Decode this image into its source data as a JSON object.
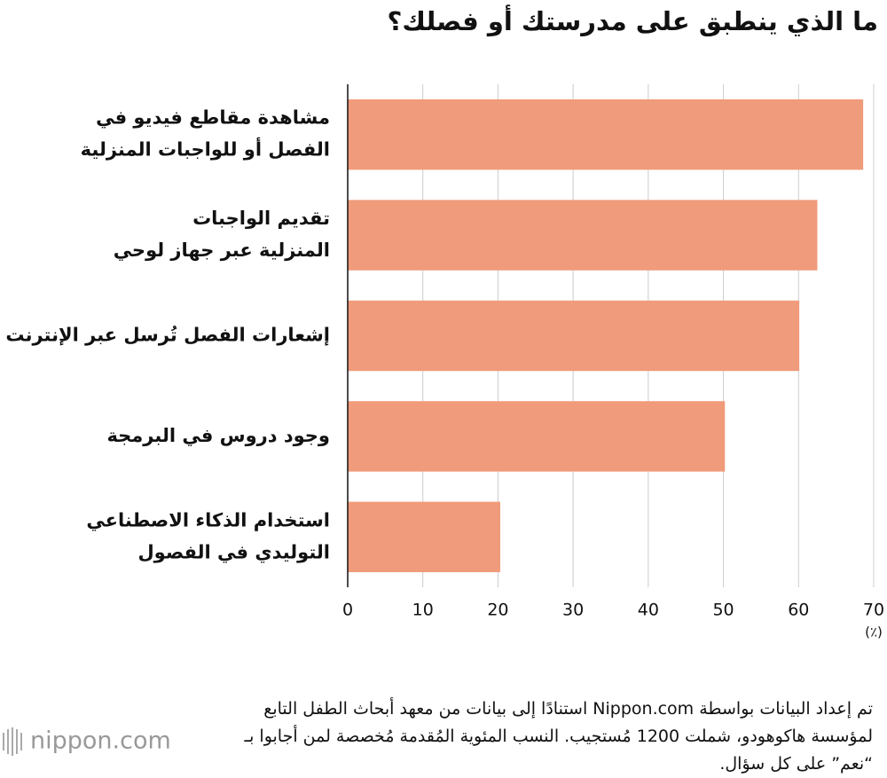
{
  "chart_data": {
    "type": "bar",
    "orientation": "horizontal",
    "title": "ما الذي ينطبق على مدرستك أو فصلك؟",
    "categories": [
      [
        "مشاهدة مقاطع فيديو في",
        "الفصل أو للواجبات المنزلية"
      ],
      [
        "تقديم الواجبات",
        "المنزلية عبر جهاز لوحي"
      ],
      [
        "إشعارات الفصل تُرسل عبر الإنترنت"
      ],
      [
        "وجود دروس في البرمجة"
      ],
      [
        "استخدام الذكاء الاصطناعي",
        "التوليدي في الفصول"
      ]
    ],
    "values": [
      68.6,
      62.5,
      60.1,
      50.2,
      20.3
    ],
    "color": "#f09b7b",
    "xlim": [
      0,
      70
    ],
    "xticks": [
      0,
      10,
      20,
      30,
      40,
      50,
      60,
      70
    ],
    "x_label": "(٪)",
    "grid": true
  },
  "note": "تم إعداد البيانات بواسطة Nippon.com استنادًا إلى بيانات من معهد أبحاث الطفل التابع لمؤسسة هاكوهودو، شملت 1200 مُستجيب. النسب المئوية المُقدمة مُخصصة لمن أجابوا بـ “نعم” على كل سؤال.",
  "logo": "nippon.com"
}
